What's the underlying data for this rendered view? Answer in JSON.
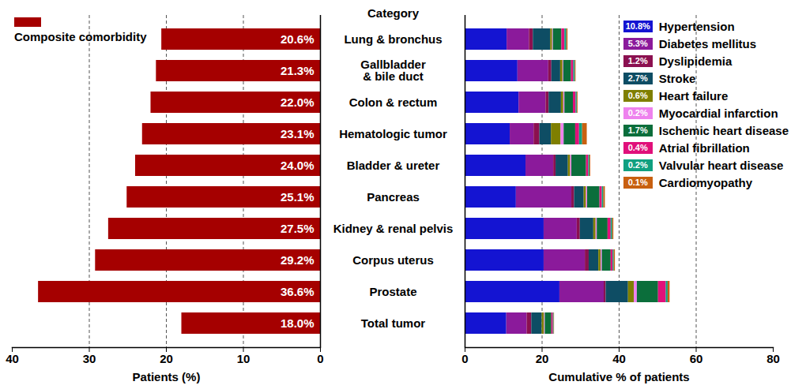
{
  "chart_data": [
    {
      "type": "bar",
      "orientation": "horizontal",
      "categories": [
        "Lung & bronchus",
        "Gallbladder\n& bile duct",
        "Colon & rectum",
        "Hematologic tumor",
        "Bladder & ureter",
        "Pancreas",
        "Kidney & renal pelvis",
        "Corpus uterus",
        "Prostate",
        "Total tumor"
      ],
      "series": [
        {
          "name": "Composite comorbidity",
          "color": "#a50000",
          "values": [
            20.6,
            21.3,
            22.0,
            23.1,
            24.0,
            25.1,
            27.5,
            29.2,
            36.6,
            18.0
          ],
          "value_labels": [
            "20.6%",
            "21.3%",
            "22.0%",
            "23.1%",
            "24.0%",
            "25.1%",
            "27.5%",
            "29.2%",
            "36.6%",
            "18.0%"
          ]
        }
      ],
      "xlim": [
        40,
        0
      ],
      "xticks": [
        40,
        30,
        20,
        10,
        0
      ],
      "x_label": "Patients (%)",
      "grid": true,
      "data_labels": true,
      "legend": "top-left"
    },
    {
      "type": "bar",
      "orientation": "horizontal",
      "stacked": true,
      "y_label": "Category",
      "categories": [
        "Lung & bronchus",
        "Gallbladder\n& bile duct",
        "Colon & rectum",
        "Hematologic tumor",
        "Bladder & ureter",
        "Pancreas",
        "Kidney & renal pelvis",
        "Corpus uterus",
        "Prostate",
        "Total tumor"
      ],
      "series": [
        {
          "name": "Hypertension",
          "color": "#1414d2",
          "values": [
            10.9,
            13.7,
            14.0,
            11.7,
            15.8,
            13.3,
            20.5,
            20.5,
            24.6,
            10.8
          ],
          "value_labels": [
            null,
            null,
            null,
            null,
            null,
            null,
            null,
            null,
            null,
            "10.8%"
          ]
        },
        {
          "name": "Diabetes mellitus",
          "color": "#8b1a9b",
          "values": [
            5.8,
            8.0,
            7.0,
            6.2,
            7.2,
            14.4,
            8.6,
            10.7,
            11.5,
            5.3
          ],
          "value_labels": [
            null,
            null,
            null,
            null,
            null,
            null,
            null,
            null,
            null,
            "5.3%"
          ]
        },
        {
          "name": "Dyslipidemia",
          "color": "#8b1050",
          "values": [
            1.0,
            0.8,
            0.8,
            1.5,
            0.6,
            0.7,
            0.8,
            1.0,
            0.5,
            1.2
          ],
          "value_labels": [
            null,
            null,
            null,
            null,
            null,
            null,
            null,
            null,
            null,
            "1.2%"
          ]
        },
        {
          "name": "Stroke",
          "color": "#0e4d64",
          "values": [
            4.5,
            2.3,
            3.2,
            3.0,
            3.2,
            2.5,
            3.5,
            2.5,
            5.8,
            2.7
          ],
          "value_labels": [
            null,
            null,
            null,
            null,
            null,
            null,
            null,
            null,
            null,
            "2.7%"
          ]
        },
        {
          "name": "Heart failure",
          "color": "#7f7f00",
          "values": [
            0.5,
            0.6,
            0.6,
            2.5,
            0.6,
            0.6,
            0.6,
            0.6,
            1.5,
            0.6
          ],
          "value_labels": [
            null,
            null,
            null,
            null,
            null,
            null,
            null,
            null,
            null,
            "0.6%"
          ]
        },
        {
          "name": "Myocardial infarction",
          "color": "#ee82ee",
          "values": [
            0.2,
            0.2,
            0.3,
            0.8,
            0.3,
            0.3,
            0.3,
            0.3,
            0.8,
            0.2
          ],
          "value_labels": [
            null,
            null,
            null,
            null,
            null,
            null,
            null,
            null,
            null,
            "0.2%"
          ]
        },
        {
          "name": "Ischemic heart disease",
          "color": "#0b6e3b",
          "values": [
            2.2,
            2.0,
            2.2,
            3.0,
            3.8,
            3.2,
            2.8,
            2.3,
            5.5,
            1.7
          ],
          "value_labels": [
            null,
            null,
            null,
            null,
            null,
            null,
            null,
            null,
            null,
            "1.7%"
          ]
        },
        {
          "name": "Atrial fibrillation",
          "color": "#e0107a",
          "values": [
            0.8,
            0.6,
            0.7,
            1.0,
            0.6,
            0.6,
            0.8,
            0.5,
            2.0,
            0.4
          ],
          "value_labels": [
            null,
            null,
            null,
            null,
            null,
            null,
            null,
            null,
            null,
            "0.4%"
          ]
        },
        {
          "name": "Valvular heart disease",
          "color": "#10a080",
          "values": [
            0.5,
            0.4,
            0.3,
            0.8,
            0.3,
            0.4,
            0.4,
            0.3,
            0.5,
            0.2
          ],
          "value_labels": [
            null,
            null,
            null,
            null,
            null,
            null,
            null,
            null,
            null,
            "0.2%"
          ]
        },
        {
          "name": "Cardiomyopathy",
          "color": "#c86010",
          "values": [
            0.3,
            0.2,
            0.2,
            1.2,
            0.2,
            0.4,
            0.3,
            0.3,
            0.5,
            0.1
          ],
          "value_labels": [
            null,
            null,
            null,
            null,
            null,
            null,
            null,
            null,
            null,
            "0.1%"
          ]
        }
      ],
      "xlim": [
        0,
        80
      ],
      "xticks": [
        0,
        20,
        40,
        60,
        80
      ],
      "x_label": "Cumulative % of patients",
      "grid": true,
      "legend": "top-right"
    }
  ]
}
